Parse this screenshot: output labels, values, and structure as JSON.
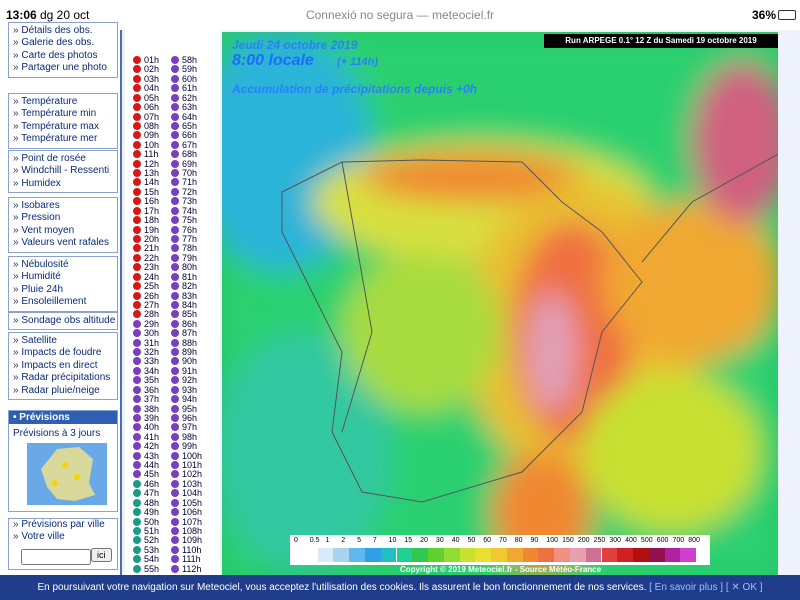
{
  "status_bar": {
    "time": "13:06",
    "date": "dg 20 oct",
    "address": "Connexió no segura — meteociel.fr",
    "battery": "36%"
  },
  "menu": {
    "groups": [
      {
        "items": [
          "Détails des obs.",
          "Galerie des obs.",
          "Carte des photos",
          "Partager une photo"
        ]
      },
      {
        "items": [
          "Température",
          "Température min",
          "Température max",
          "Température mer"
        ]
      },
      {
        "items": [
          "Point de rosée",
          "Windchill - Ressenti",
          "Humidex"
        ]
      },
      {
        "items": [
          "Isobares",
          "Pression",
          "Vent moyen",
          "Valeurs vent rafales"
        ]
      },
      {
        "items": [
          "Nébulosité",
          "Humidité",
          "Pluie 24h",
          "Ensoleillement"
        ]
      },
      {
        "items": [
          "Sondage obs altitude"
        ]
      },
      {
        "items": [
          "Satellite",
          "Impacts de foudre",
          "Impacts en direct",
          "Radar précipitations",
          "Radar pluie/neige"
        ]
      }
    ],
    "forecast": {
      "title": "Prévisions",
      "link": "Prévisions à 3 jours"
    },
    "city": {
      "link": "Prévisions par ville",
      "label": "Votre ville",
      "button": "ici"
    }
  },
  "hours": {
    "left": [
      "01h",
      "02h",
      "03h",
      "04h",
      "05h",
      "06h",
      "07h",
      "08h",
      "09h",
      "10h",
      "11h",
      "12h",
      "13h",
      "14h",
      "15h",
      "16h",
      "17h",
      "18h",
      "19h",
      "20h",
      "21h",
      "22h",
      "23h",
      "24h",
      "25h",
      "26h",
      "27h",
      "28h",
      "29h",
      "30h",
      "31h",
      "32h",
      "33h",
      "34h",
      "35h",
      "36h",
      "37h",
      "38h",
      "39h",
      "40h",
      "41h",
      "42h",
      "43h",
      "44h",
      "45h",
      "46h",
      "47h",
      "48h",
      "49h",
      "50h",
      "51h",
      "52h",
      "53h",
      "54h",
      "55h"
    ],
    "right": [
      "58h",
      "59h",
      "60h",
      "61h",
      "62h",
      "63h",
      "64h",
      "65h",
      "66h",
      "67h",
      "68h",
      "69h",
      "70h",
      "71h",
      "72h",
      "73h",
      "74h",
      "75h",
      "76h",
      "77h",
      "78h",
      "79h",
      "80h",
      "81h",
      "82h",
      "83h",
      "84h",
      "85h",
      "86h",
      "87h",
      "88h",
      "89h",
      "90h",
      "91h",
      "92h",
      "93h",
      "94h",
      "95h",
      "96h",
      "97h",
      "98h",
      "99h",
      "100h",
      "101h",
      "102h",
      "103h",
      "104h",
      "105h",
      "106h",
      "107h",
      "108h",
      "109h",
      "110h",
      "111h",
      "112h"
    ]
  },
  "map": {
    "date": "Jeudi 24 octobre 2019",
    "time": "8:00 locale",
    "offset": "(+ 114h)",
    "subtitle": "Accumulation de précipitations depuis +0h",
    "run": "Run ARPEGE 0.1° 12 Z du Samedi 19 octobre 2019",
    "legend": {
      "labels": [
        "0",
        "0.5",
        "1",
        "2",
        "5",
        "7",
        "10",
        "15",
        "20",
        "30",
        "40",
        "50",
        "60",
        "70",
        "80",
        "90",
        "100",
        "150",
        "200",
        "250",
        "300",
        "400",
        "500",
        "600",
        "700",
        "800"
      ],
      "colors": [
        "#ffffff",
        "#d8ecf8",
        "#a8d4f0",
        "#60b8ee",
        "#2fa0e8",
        "#20c0c0",
        "#20d090",
        "#30c850",
        "#60d030",
        "#90dc30",
        "#c8e030",
        "#e8e030",
        "#f0c830",
        "#f0a830",
        "#f08830",
        "#f07040",
        "#f09080",
        "#e8a0b0",
        "#d07090",
        "#e04040",
        "#d02020",
        "#b01010",
        "#901050",
        "#b020a0",
        "#d040d0"
      ]
    },
    "copyright": "Copyright © 2019 Meteociel.fr - Source Météo-France"
  },
  "cookie": {
    "text": "En poursuivant votre navigation sur Meteociel, vous acceptez l'utilisation des cookies. Ils assurent le bon fonctionnement de nos services.",
    "more": "[ En savoir plus ]",
    "ok": "[ ✕ OK ]"
  }
}
